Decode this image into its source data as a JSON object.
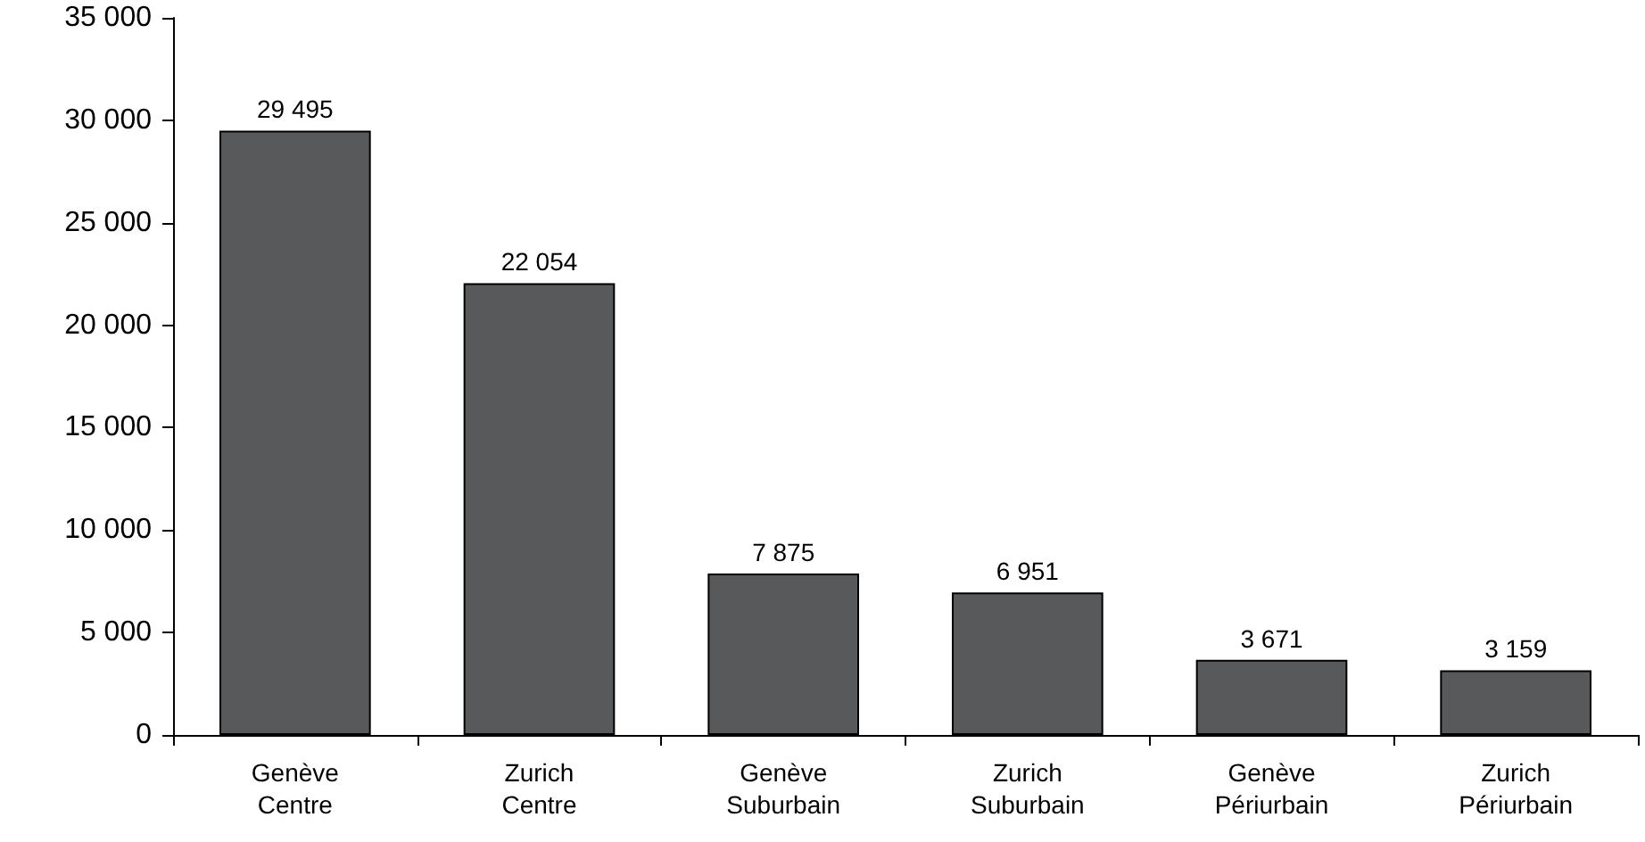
{
  "chart_data": {
    "type": "bar",
    "categories": [
      "Genève\nCentre",
      "Zurich\nCentre",
      "Genève\nSuburbain",
      "Zurich\nSuburbain",
      "Genève\nPériurbain",
      "Zurich\nPériurbain"
    ],
    "values": [
      29495,
      22054,
      7875,
      6951,
      3671,
      3159
    ],
    "value_labels": [
      "29 495",
      "22 054",
      "7 875",
      "6 951",
      "3 671",
      "3 159"
    ],
    "color": "#58595b",
    "ylim": [
      0,
      35000
    ],
    "yticks": [
      {
        "value": 0,
        "label": "0"
      },
      {
        "value": 5000,
        "label": "5 000"
      },
      {
        "value": 10000,
        "label": "10 000"
      },
      {
        "value": 15000,
        "label": "15 000"
      },
      {
        "value": 20000,
        "label": "20 000"
      },
      {
        "value": 25000,
        "label": "25 000"
      },
      {
        "value": 30000,
        "label": "30 000"
      },
      {
        "value": 35000,
        "label": "35 000"
      }
    ]
  }
}
